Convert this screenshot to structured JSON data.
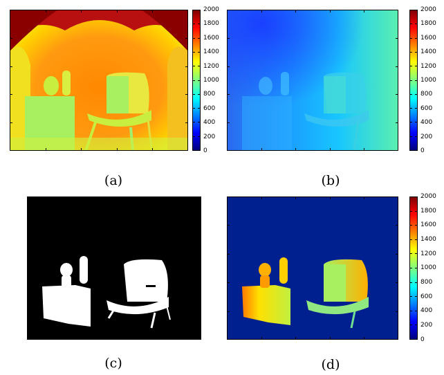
{
  "panels": [
    {
      "caption": "(a)"
    },
    {
      "caption": "(b)"
    },
    {
      "caption": "(c)"
    },
    {
      "caption": "(d)"
    }
  ],
  "colorbar": {
    "labels": [
      "2000",
      "1800",
      "1600",
      "1400",
      "1200",
      "1000",
      "800",
      "600",
      "400",
      "200",
      "0"
    ],
    "colormap": "jet",
    "range": [
      0,
      2000
    ]
  }
}
